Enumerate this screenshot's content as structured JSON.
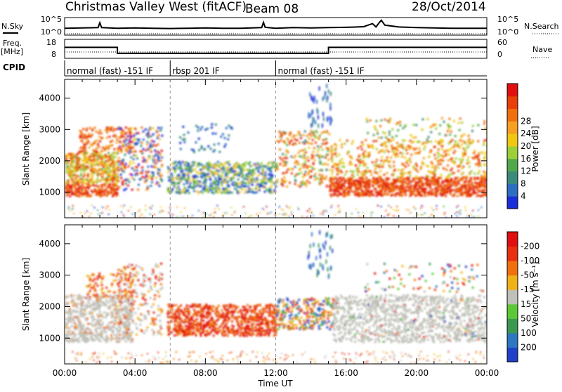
{
  "header": {
    "title": "Christmas Valley West (fitACF)",
    "beam": "Beam 08",
    "date": "28/Oct/2014"
  },
  "side_labels": {
    "nsky": "N.Sky",
    "freq": "Freq.",
    "freq_unit": "[MHz]",
    "cpid": "CPID",
    "nsearch": "N.Search",
    "nave": "Nave"
  },
  "cpid_segments": [
    {
      "label": "normal (fast) -151 IF",
      "start_h": 0,
      "end_h": 6
    },
    {
      "label": "rbsp 201 IF",
      "start_h": 6,
      "end_h": 12
    },
    {
      "label": "normal (fast) -151 IF",
      "start_h": 12,
      "end_h": 24
    }
  ],
  "chart_data": [
    {
      "type": "line",
      "panel": "noise",
      "left_axis": {
        "ticks": [
          "10^5",
          "10^0"
        ]
      },
      "right_axis": {
        "ticks": [
          "10^5",
          "10^0"
        ]
      },
      "series": [
        {
          "name": "N.Sky",
          "x_h": [
            0,
            1,
            1.9,
            2,
            2.1,
            3,
            4,
            5,
            6,
            7,
            8,
            9,
            10,
            11.2,
            11.3,
            11.4,
            12,
            13,
            14,
            15,
            16,
            17,
            17.5,
            17.7,
            17.9,
            18,
            18.2,
            19,
            20,
            21,
            22,
            23,
            24
          ],
          "values": [
            2.0,
            2.1,
            2.2,
            3.8,
            2.2,
            2.0,
            2.1,
            2.0,
            1.9,
            2.0,
            2.1,
            2.0,
            2.0,
            2.2,
            3.9,
            2.3,
            2.0,
            2.2,
            2.1,
            2.2,
            2.3,
            2.5,
            3.5,
            2.4,
            3.9,
            4.6,
            3.0,
            2.4,
            2.2,
            2.1,
            2.0,
            2.0,
            2.0
          ]
        }
      ]
    },
    {
      "type": "line",
      "panel": "frequency",
      "left_axis": {
        "ticks": [
          "18",
          "8"
        ]
      },
      "right_axis": {
        "ticks": [
          "60",
          "0"
        ]
      },
      "series": [
        {
          "name": "Freq.",
          "x_h": [
            0,
            3,
            3,
            15,
            15,
            24
          ],
          "values": [
            16,
            16,
            11,
            11,
            16,
            16
          ]
        }
      ]
    },
    {
      "type": "heatmap",
      "panel": "power",
      "ylabel": "Slant Range [km]",
      "y_ticks": [
        1000,
        2000,
        3000,
        4000
      ],
      "ylim": [
        180,
        4600
      ],
      "colorbar": {
        "label": "Power [dB]",
        "ticks": [
          4,
          8,
          12,
          16,
          20,
          24,
          28
        ],
        "colors": [
          "#1a2ed8",
          "#2d6ec0",
          "#3c8a7a",
          "#52a84c",
          "#9ccf3a",
          "#f0c814",
          "#f5a020",
          "#f07010",
          "#e84008",
          "#e01010"
        ]
      },
      "dashed_times_h": [
        6,
        12
      ]
    },
    {
      "type": "heatmap",
      "panel": "velocity",
      "ylabel": "Slant Range [km]",
      "xlabel": "Time UT",
      "y_ticks": [
        1000,
        2000,
        3000,
        4000
      ],
      "ylim": [
        180,
        4600
      ],
      "x_ticks": [
        "00:00",
        "04:00",
        "08:00",
        "12:00",
        "16:00",
        "20:00",
        "00:00"
      ],
      "colorbar": {
        "label": "Velocity [m s⁻¹]",
        "ticks": [
          200,
          100,
          50,
          15,
          -15,
          -50,
          -100,
          -200
        ],
        "colors": [
          "#2040c8",
          "#2c78c0",
          "#3c9850",
          "#5cc838",
          "#c0c0b8",
          "#f0b018",
          "#f07010",
          "#e83010",
          "#e01010"
        ]
      },
      "dashed_times_h": [
        6,
        12
      ]
    }
  ]
}
